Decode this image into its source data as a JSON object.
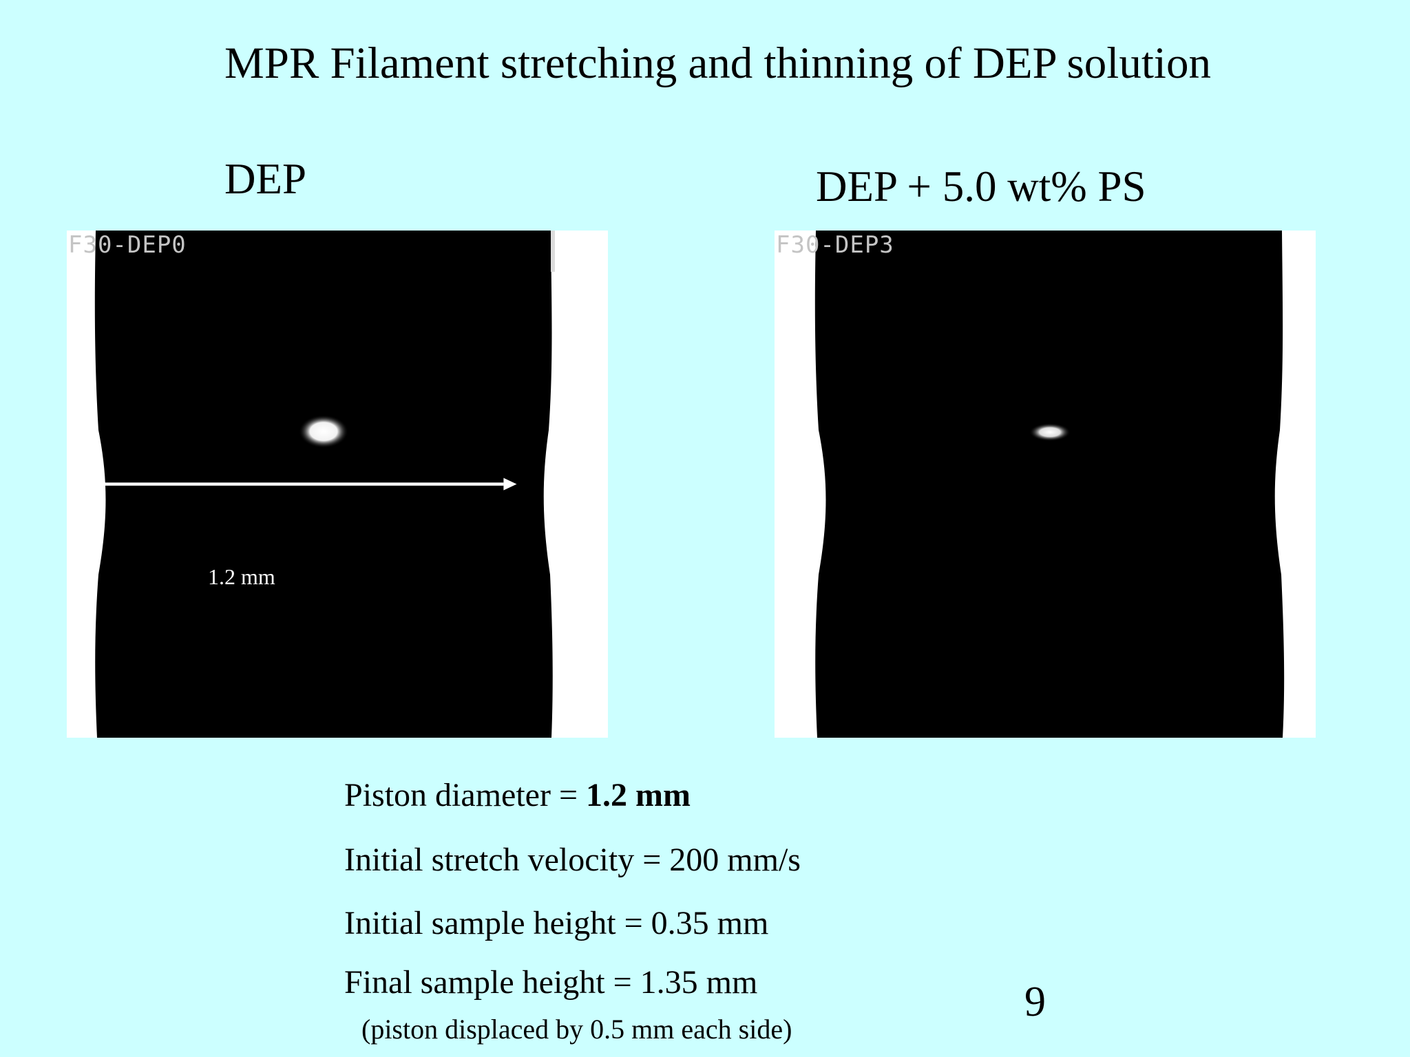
{
  "slide": {
    "title": "MPR Filament stretching and thinning of DEP solution",
    "page_number": "9"
  },
  "panels": {
    "left": {
      "heading": "DEP",
      "frame_label": "F30-DEP0",
      "scale_label": "1.2 mm"
    },
    "right": {
      "heading": "DEP + 5.0 wt% PS",
      "frame_label": "F30-DEP3"
    }
  },
  "parameters": {
    "piston_diameter_label": "Piston diameter = ",
    "piston_diameter_value": "1.2 mm",
    "stretch_velocity": "Initial stretch velocity = 200 mm/s",
    "initial_height": "Initial sample height = 0.35 mm",
    "final_height": "Final sample height = 1.35 mm",
    "note": "(piston displaced by 0.5 mm each side)"
  },
  "colors": {
    "background": "#ccffff",
    "frame_background": "#ffffff",
    "filament": "#000000",
    "overlay_text": "#ffffff"
  }
}
